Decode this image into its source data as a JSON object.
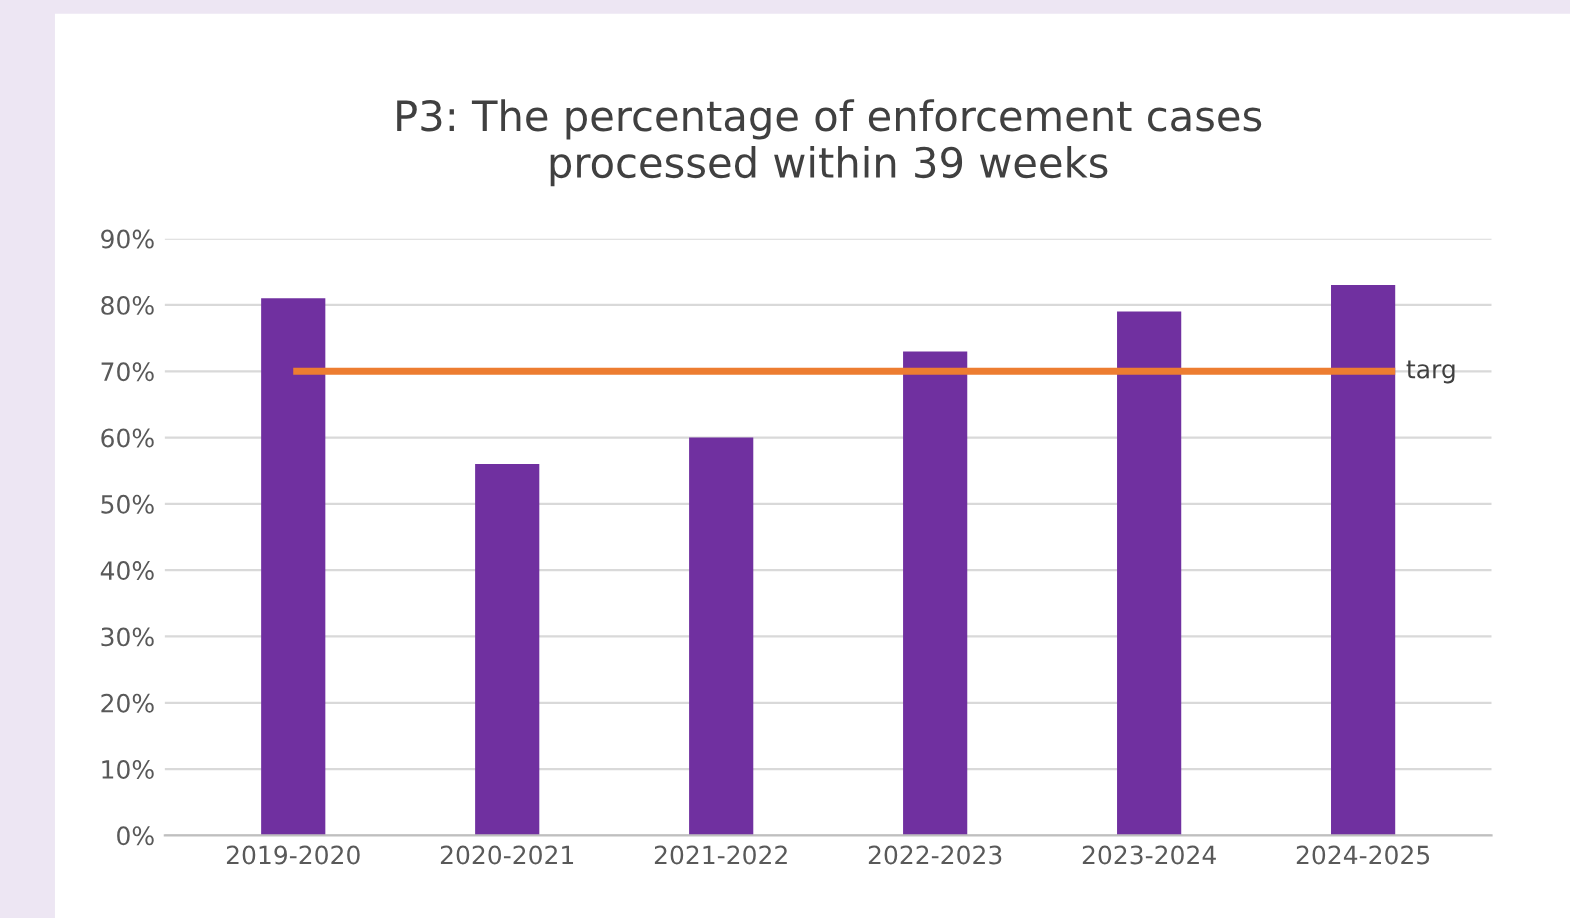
{
  "chart_data": {
    "type": "bar",
    "title": "P3: The percentage of enforcement cases\nprocessed within 39 weeks",
    "categories": [
      "2019-2020",
      "2020-2021",
      "2021-2022",
      "2022-2023",
      "2023-2024",
      "2024-2025"
    ],
    "values": [
      81,
      56,
      60,
      73,
      79,
      83
    ],
    "color": "#7030a0",
    "ylim": [
      0,
      90
    ],
    "yticks": [
      {
        "value": 0,
        "label": "0%"
      },
      {
        "value": 10,
        "label": "10%"
      },
      {
        "value": 20,
        "label": "20%"
      },
      {
        "value": 30,
        "label": "30%"
      },
      {
        "value": 40,
        "label": "40%"
      },
      {
        "value": 50,
        "label": "50%"
      },
      {
        "value": 60,
        "label": "60%"
      },
      {
        "value": 70,
        "label": "70%"
      },
      {
        "value": 80,
        "label": "80%"
      },
      {
        "value": 90,
        "label": "90%"
      }
    ],
    "grid": "y",
    "ref_lines": [
      {
        "axis": "y",
        "value": 70,
        "label": "targ",
        "color": "#ed7d31"
      }
    ]
  }
}
